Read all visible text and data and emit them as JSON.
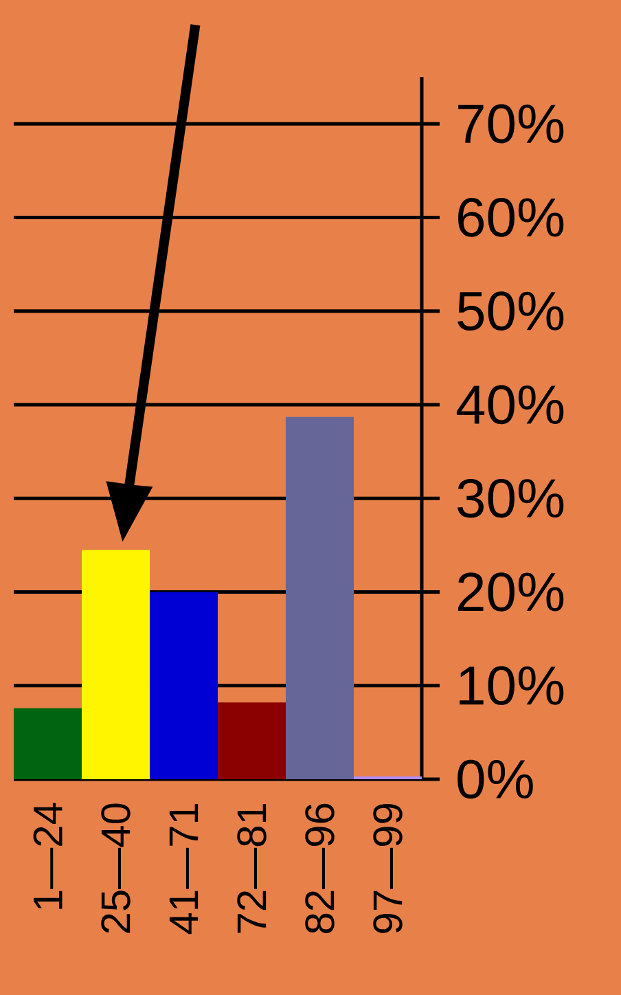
{
  "chart_data": {
    "type": "bar",
    "categories": [
      "1—24",
      "25—40",
      "41—71",
      "72—81",
      "82—96",
      "97—99"
    ],
    "values": [
      7.6,
      24.5,
      20,
      8.2,
      38.7,
      0.3
    ],
    "colors": [
      "#006411",
      "#fff500",
      "#0000d4",
      "#8b0000",
      "#666699",
      "#b08cff"
    ],
    "ylim": [
      0,
      75
    ],
    "yticks": [
      {
        "value": 0,
        "label": "0%"
      },
      {
        "value": 10,
        "label": "10%"
      },
      {
        "value": 20,
        "label": "20%"
      },
      {
        "value": 30,
        "label": "30%"
      },
      {
        "value": 40,
        "label": "40%"
      },
      {
        "value": 50,
        "label": "50%"
      },
      {
        "value": 60,
        "label": "60%"
      },
      {
        "value": 70,
        "label": "70%"
      }
    ],
    "grid": "y"
  }
}
